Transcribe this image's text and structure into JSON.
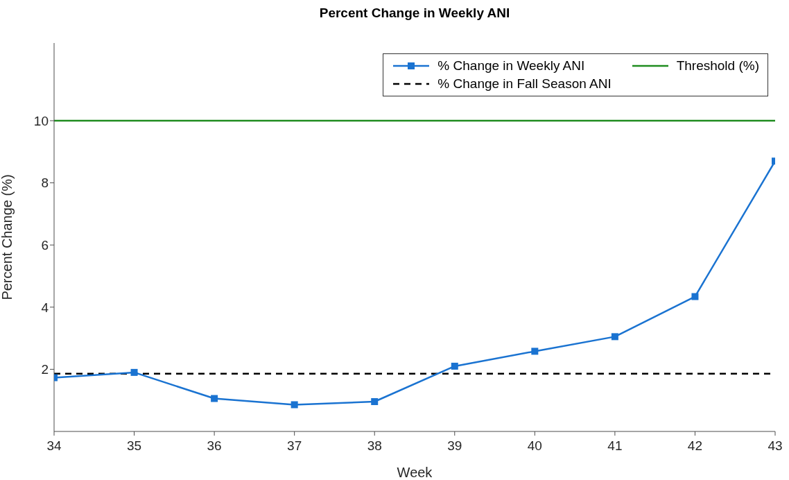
{
  "chart_data": {
    "type": "line",
    "title": "Percent Change in Weekly ANI",
    "xlabel": "Week",
    "ylabel": "Percent Change (%)",
    "x": [
      34,
      35,
      36,
      37,
      38,
      39,
      40,
      41,
      42,
      43
    ],
    "series": [
      {
        "name": "% Change in Weekly ANI",
        "color": "#1a73d1",
        "values": [
          1.73,
          1.9,
          1.06,
          0.86,
          0.96,
          2.1,
          2.58,
          3.05,
          4.34,
          8.7
        ]
      }
    ],
    "ref_lines": [
      {
        "axis": "y",
        "value": 10,
        "label": "Threshold (%)",
        "color": "#1f8c1f",
        "line_style": "solid"
      },
      {
        "axis": "y",
        "value": 1.86,
        "label": "% Change in Fall Season ANI",
        "color": "#000000",
        "line_style": "dashed"
      }
    ],
    "xlim": [
      34,
      43
    ],
    "xticks": [
      34,
      35,
      36,
      37,
      38,
      39,
      40,
      41,
      42,
      43
    ],
    "ylim": [
      0,
      12.5
    ],
    "yticks": [
      2,
      4,
      6,
      8,
      10
    ],
    "grid": false,
    "legend": "top right",
    "marker": "square",
    "line_style": "solid"
  }
}
